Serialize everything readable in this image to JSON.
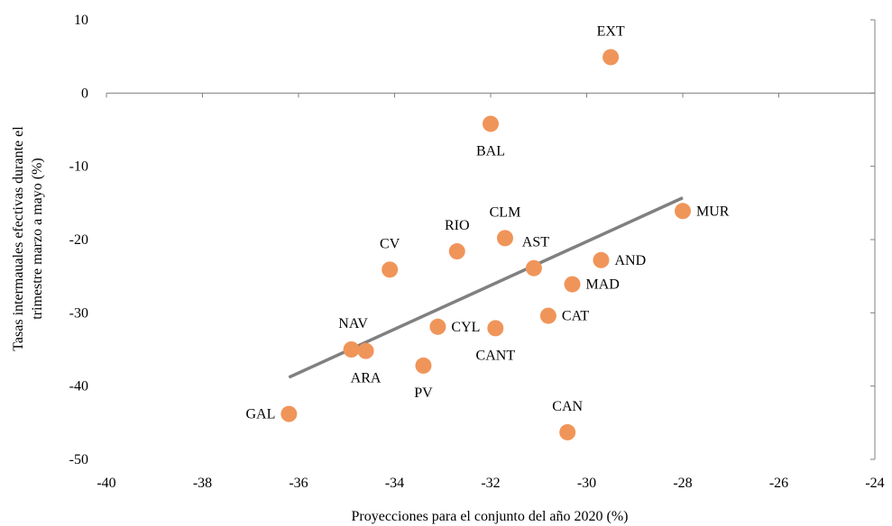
{
  "chart_data": {
    "type": "scatter",
    "xlabel": "Proyecciones para el conjunto del año 2020 (%)",
    "ylabel_lines": [
      "Tasas intermaualеs efectivas durante el",
      "trimestre marzo a mayo (%)"
    ],
    "xlim": [
      -40,
      -24
    ],
    "ylim": [
      -50,
      10
    ],
    "x_ticks": [
      -40,
      -38,
      -36,
      -34,
      -32,
      -30,
      -28,
      -26,
      -24
    ],
    "x_tick_labels": [
      "-40",
      "-38",
      "-36",
      "-34",
      "-32",
      "-30",
      "-28",
      "-26",
      "-24"
    ],
    "y_ticks": [
      10,
      0,
      -10,
      -20,
      -30,
      -40,
      -50
    ],
    "y_tick_labels": [
      "10",
      "0",
      "-10",
      "-20",
      "-30",
      "-40",
      "-50"
    ],
    "grid": false,
    "marker_color": "#F0955A",
    "trendline_color": "#808080",
    "points": [
      {
        "label": "EXT",
        "x": -29.5,
        "y": 4.9,
        "label_pos": "above"
      },
      {
        "label": "BAL",
        "x": -32.0,
        "y": -4.2,
        "label_pos": "below"
      },
      {
        "label": "MUR",
        "x": -28.0,
        "y": -16.1,
        "label_pos": "right"
      },
      {
        "label": "CLM",
        "x": -31.7,
        "y": -19.8,
        "label_pos": "above"
      },
      {
        "label": "RIO",
        "x": -32.7,
        "y": -21.6,
        "label_pos": "above"
      },
      {
        "label": "AST",
        "x": -31.1,
        "y": -23.9,
        "label_pos": "above-left"
      },
      {
        "label": "CV",
        "x": -34.1,
        "y": -24.1,
        "label_pos": "above"
      },
      {
        "label": "AND",
        "x": -29.7,
        "y": -22.8,
        "label_pos": "right"
      },
      {
        "label": "MAD",
        "x": -30.3,
        "y": -26.1,
        "label_pos": "right"
      },
      {
        "label": "CAT",
        "x": -30.8,
        "y": -30.4,
        "label_pos": "right"
      },
      {
        "label": "CYL",
        "x": -33.1,
        "y": -31.9,
        "label_pos": "right"
      },
      {
        "label": "CANT",
        "x": -31.9,
        "y": -32.1,
        "label_pos": "below"
      },
      {
        "label": "NAV",
        "x": -34.9,
        "y": -35.0,
        "label_pos": "above-left"
      },
      {
        "label": "ARA",
        "x": -34.6,
        "y": -35.2,
        "label_pos": "below"
      },
      {
        "label": "PV",
        "x": -33.4,
        "y": -37.2,
        "label_pos": "below"
      },
      {
        "label": "CAN",
        "x": -30.4,
        "y": -46.3,
        "label_pos": "above"
      },
      {
        "label": "GAL",
        "x": -36.2,
        "y": -43.8,
        "label_pos": "left"
      }
    ],
    "trendline": {
      "x": [
        -36.2,
        -28.0
      ],
      "y": [
        -38.8,
        -14.3
      ]
    }
  }
}
